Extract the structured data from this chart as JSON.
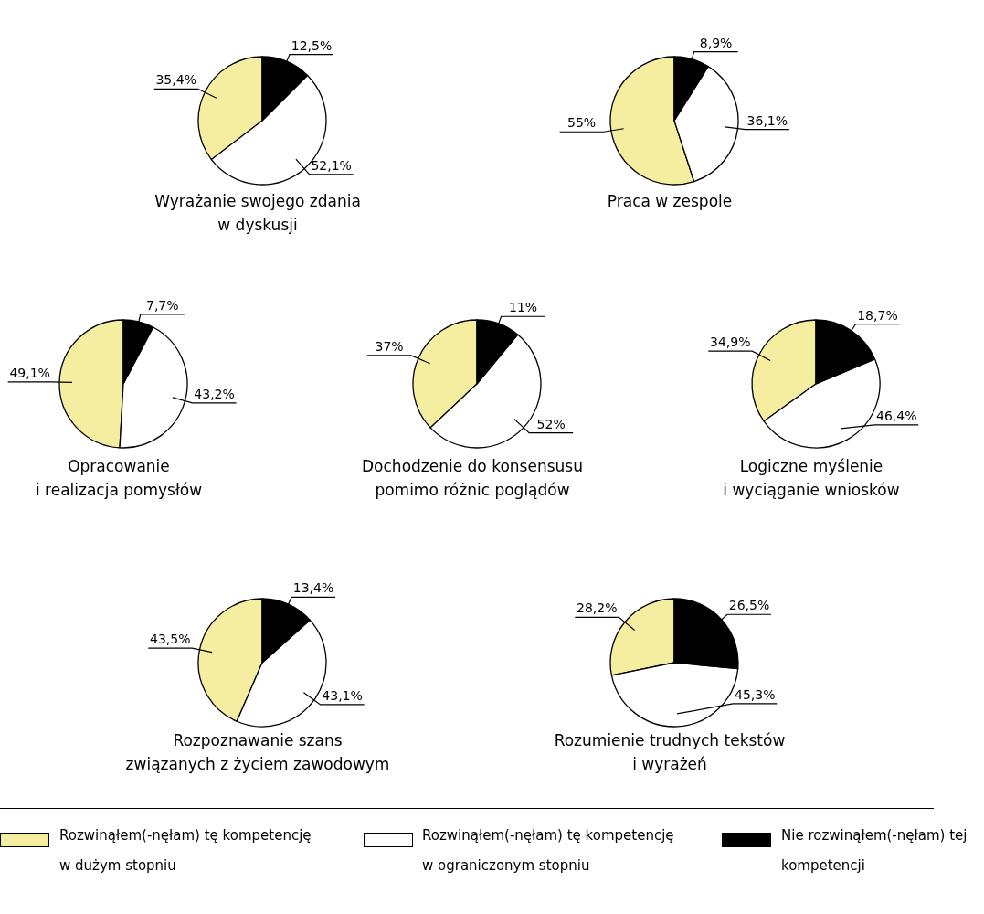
{
  "chart_data": [
    {
      "type": "pie",
      "title": "Wyrażanie swojego zdania\nw dyskusji",
      "categories": [
        "Rozwinąłem(-nęłam) tę kompetencję w dużym stopniu",
        "Rozwinąłem(-nęłam) tę kompetencję w ograniczonym stopniu",
        "Nie rozwinąłem(-nęłam) tej kompetencji"
      ],
      "values": [
        35.4,
        52.1,
        12.5
      ],
      "colors": [
        "#f5eea0",
        "#ffffff",
        "#000000"
      ],
      "value_labels": [
        "35,4%",
        "52,1%",
        "12,5%"
      ],
      "legend": "bottom"
    },
    {
      "type": "pie",
      "title": "Praca w zespole",
      "values": [
        55,
        36.1,
        8.9
      ],
      "colors": [
        "#f5eea0",
        "#ffffff",
        "#000000"
      ],
      "value_labels": [
        "55%",
        "36,1%",
        "8,9%"
      ]
    },
    {
      "type": "pie",
      "title": "Opracowanie\ni realizacja pomysłów",
      "values": [
        49.1,
        43.2,
        7.7
      ],
      "colors": [
        "#f5eea0",
        "#ffffff",
        "#000000"
      ],
      "value_labels": [
        "49,1%",
        "43,2%",
        "7,7%"
      ]
    },
    {
      "type": "pie",
      "title": "Dochodzenie do konsensusu\npomimo różnic poglądów",
      "values": [
        37,
        52,
        11
      ],
      "colors": [
        "#f5eea0",
        "#ffffff",
        "#000000"
      ],
      "value_labels": [
        "37%",
        "52%",
        "11%"
      ]
    },
    {
      "type": "pie",
      "title": "Logiczne myślenie\ni wyciąganie wniosków",
      "values": [
        34.9,
        46.4,
        18.7
      ],
      "colors": [
        "#f5eea0",
        "#ffffff",
        "#000000"
      ],
      "value_labels": [
        "34,9%",
        "46,4%",
        "18,7%"
      ]
    },
    {
      "type": "pie",
      "title": "Rozpoznawanie szans\nzwiązanych z życiem zawodowym",
      "values": [
        43.5,
        43.1,
        13.4
      ],
      "colors": [
        "#f5eea0",
        "#ffffff",
        "#000000"
      ],
      "value_labels": [
        "43,5%",
        "43,1%",
        "13,4%"
      ]
    },
    {
      "type": "pie",
      "title": "Rozumienie trudnych tekstów\ni wyrażeń",
      "values": [
        28.2,
        45.3,
        26.5
      ],
      "colors": [
        "#f5eea0",
        "#ffffff",
        "#000000"
      ],
      "value_labels": [
        "28,2%",
        "45,3%",
        "26,5%"
      ]
    }
  ]
}
